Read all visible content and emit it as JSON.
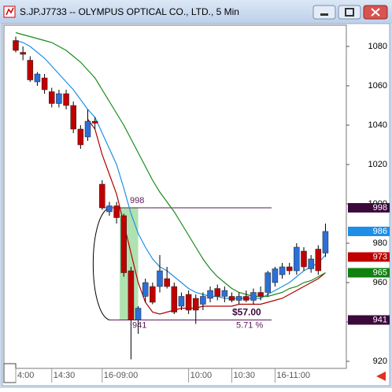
{
  "window": {
    "title": "S.JP.J7733 -- OLYMPUS OPTICAL CO., LTD., 5 Min"
  },
  "chart_data": {
    "type": "candlestick",
    "categories": [
      "4:00",
      null,
      null,
      null,
      null,
      "14:30",
      null,
      null,
      null,
      null,
      null,
      null,
      "16-09:00",
      null,
      null,
      null,
      null,
      null,
      null,
      null,
      null,
      null,
      null,
      null,
      "10:00",
      null,
      null,
      null,
      null,
      null,
      "10:30",
      null,
      null,
      null,
      null,
      null,
      "16-11:00",
      null,
      null,
      null,
      null,
      null,
      null,
      null
    ],
    "open": [
      1083,
      1077,
      1073,
      1062,
      1064,
      1057,
      1051,
      1056,
      1050,
      1038,
      1034,
      1042,
      1010,
      996,
      999,
      994,
      966,
      941,
      953,
      958,
      958,
      962,
      958,
      948,
      954,
      952,
      949,
      952,
      957,
      953,
      953,
      951,
      953,
      951,
      955,
      955,
      960,
      964,
      968,
      966,
      976,
      967,
      977,
      975
    ],
    "high": [
      1085,
      1080,
      1075,
      1067,
      1066,
      1059,
      1058,
      1058,
      1052,
      1040,
      1048,
      1044,
      1012,
      1001,
      1001,
      995,
      968,
      948,
      962,
      960,
      974,
      968,
      960,
      955,
      956,
      954,
      955,
      958,
      959,
      958,
      955,
      955,
      956,
      957,
      958,
      966,
      968,
      970,
      970,
      980,
      978,
      974,
      979,
      990
    ],
    "low": [
      1077,
      1073,
      1062,
      1060,
      1056,
      1049,
      1049,
      1048,
      1036,
      1028,
      1032,
      1038,
      997,
      994,
      990,
      963,
      921,
      934,
      950,
      949,
      955,
      957,
      944,
      946,
      944,
      939,
      946,
      950,
      951,
      950,
      950,
      949,
      950,
      949,
      951,
      953,
      958,
      962,
      964,
      964,
      966,
      965,
      964,
      973
    ],
    "close": [
      1078,
      1076,
      1063,
      1066,
      1058,
      1051,
      1056,
      1050,
      1038,
      1030,
      1042,
      1041,
      998,
      999,
      993,
      965,
      941,
      947,
      960,
      950,
      966,
      958,
      945,
      953,
      946,
      946,
      953,
      956,
      953,
      956,
      951,
      953,
      951,
      955,
      953,
      965,
      967,
      968,
      966,
      978,
      968,
      972,
      966,
      986
    ],
    "up_color": "#2b6fd8",
    "down_color": "#c00000",
    "series": [
      {
        "color": "#1e8fe6",
        "values": [
          1083,
          1082,
          1080,
          1077,
          1074,
          1070,
          1066,
          1062,
          1058,
          1053,
          1048,
          1044,
          1036,
          1028,
          1020,
          1008,
          995,
          985,
          978,
          972,
          968,
          966,
          963,
          960,
          957,
          955,
          954,
          953,
          953,
          952,
          952,
          952,
          952,
          952,
          952,
          954,
          956,
          958,
          960,
          963,
          966,
          968,
          970,
          974
        ]
      },
      {
        "color": "#b00000",
        "values": [
          null,
          null,
          null,
          null,
          null,
          null,
          null,
          null,
          null,
          null,
          1043,
          1038,
          1025,
          1015,
          1005,
          990,
          975,
          960,
          950,
          945,
          944,
          945,
          946,
          947,
          947,
          947,
          948,
          948,
          948,
          948,
          948,
          949,
          949,
          949,
          949,
          950,
          951,
          952,
          954,
          956,
          958,
          960,
          962,
          965
        ]
      },
      {
        "color": "#1a8a1a",
        "values": [
          1087,
          1086,
          1085,
          1084,
          1083,
          1082,
          1080,
          1078,
          1075,
          1072,
          1068,
          1064,
          1058,
          1052,
          1046,
          1040,
          1033,
          1026,
          1019,
          1012,
          1006,
          1001,
          996,
          990,
          984,
          978,
          972,
          967,
          963,
          960,
          957,
          955,
          954,
          953,
          953,
          953,
          954,
          955,
          957,
          958,
          960,
          961,
          963,
          965
        ]
      }
    ],
    "ylim": [
      916.4,
      1090.8
    ],
    "yticks": [
      920,
      940,
      960,
      980,
      1000,
      1020,
      1040,
      1060,
      1080
    ],
    "grid": false,
    "price_markers": [
      {
        "value": 998,
        "color": "#3b0a3b"
      },
      {
        "value": 986,
        "color": "#1e8fe6"
      },
      {
        "value": 973,
        "color": "#c00000"
      },
      {
        "value": 965,
        "color": "#108010"
      },
      {
        "value": 941,
        "color": "#3b0a3b"
      }
    ],
    "measure": {
      "start": 998,
      "end": 941,
      "change_label": "$57.00",
      "percent_label": "5.71 %",
      "color": "#5a1a5a",
      "band_color": "#7ccf7c"
    }
  }
}
